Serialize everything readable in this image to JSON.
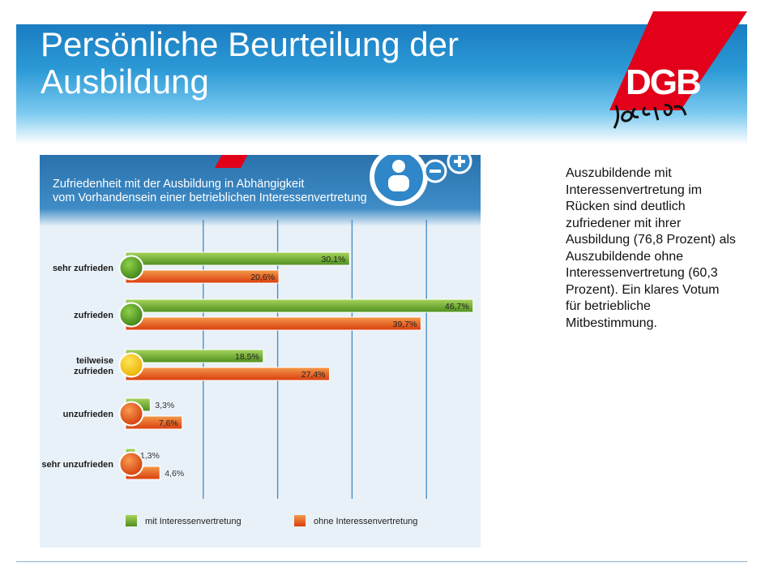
{
  "slide": {
    "title": "Persönliche Beurteilung der Ausbildung",
    "description": "Auszubildende mit Interessenvertretung im Rücken sind deutlich zufriedener mit ihrer Ausbildung (76,8 Prozent) als Auszubildende ohne Interessenvertretung (60,3 Prozent). Ein klares Votum für betriebliche Mitbestimmung.",
    "logo": {
      "text_main": "DGB",
      "text_sub": "Jugend",
      "color": "#e2001a"
    },
    "colors": {
      "header_dark": "#1a7cc1",
      "header_light": "#7ccaf0",
      "panel_header": "#2a72ad"
    }
  },
  "chart_data": {
    "type": "bar",
    "orientation": "horizontal",
    "title": "Zufriedenheit mit der Ausbildung in Abhängigkeit vom Vorhandensein einer betrieblichen Interessenvertretung",
    "categories": [
      "sehr zufrieden",
      "zufrieden",
      "teilweise zufrieden",
      "unzufrieden",
      "sehr unzufrieden"
    ],
    "category_dot_colors": [
      "#4f9d2a",
      "#4f9d2a",
      "#f2c200",
      "#e8510f",
      "#e8510f"
    ],
    "series": [
      {
        "name": "mit Interessenvertretung",
        "color": "#6aa92f",
        "values": [
          30.1,
          46.7,
          18.5,
          3.3,
          1.3
        ],
        "labels": [
          "30,1%",
          "46,7%",
          "18,5%",
          "3,3%",
          "1,3%"
        ]
      },
      {
        "name": "ohne Interessenvertretung",
        "color": "#e8531a",
        "values": [
          20.6,
          39.7,
          27.4,
          7.6,
          4.6
        ],
        "labels": [
          "20,6%",
          "39,7%",
          "27,4%",
          "7,6%",
          "4,6%"
        ]
      }
    ],
    "xlim": [
      0,
      50
    ],
    "gridlines": [
      10,
      20,
      30,
      40,
      50
    ],
    "legend_position": "bottom",
    "icon": "person-minus-plus-icon"
  }
}
